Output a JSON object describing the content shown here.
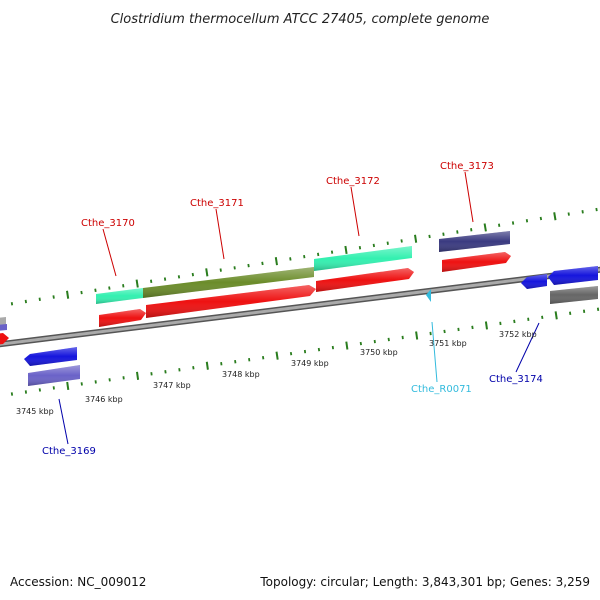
{
  "title": "Clostridium thermocellum ATCC 27405, complete genome",
  "footer": {
    "accession": "Accession: NC_009012",
    "info": "Topology: circular; Length: 3,843,301 bp; Genes: 3,259"
  },
  "scale": {
    "labels": [
      "3745 kbp",
      "3746 kbp",
      "3747 kbp",
      "3748 kbp",
      "3749 kbp",
      "3750 kbp",
      "3751 kbp",
      "3752 kbp"
    ]
  },
  "genes": {
    "cthe_3169": "Cthe_3169",
    "cthe_3170": "Cthe_3170",
    "cthe_3171": "Cthe_3171",
    "cthe_3172": "Cthe_3172",
    "cthe_3173": "Cthe_3173",
    "cthe_3174": "Cthe_3174",
    "cthe_r0071": "Cthe_R0071"
  },
  "colors": {
    "forward_label": "#cc0000",
    "reverse_label": "#0000aa",
    "rna_label": "#33bbdd",
    "tick": "#2a7d1e",
    "backbone": "#888888",
    "red_feature": "#ee1111",
    "cyan_feature": "#33f0b0",
    "olive_feature": "#6b8c2a",
    "blue_feature": "#1515dd",
    "purple_feature": "#6a62c8",
    "navy_feature": "#3a3a80",
    "grey_feature": "#666666"
  }
}
